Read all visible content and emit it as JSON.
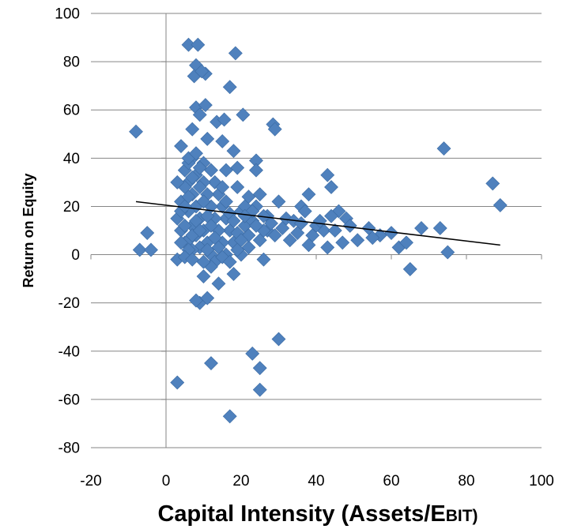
{
  "chart_data": {
    "type": "scatter",
    "title": "",
    "xlabel_main": "Capital Intensity (Assets/E",
    "xlabel_small": "BIT)",
    "ylabel": "Return on Equity",
    "xlim": [
      -20,
      100
    ],
    "ylim": [
      -80,
      100
    ],
    "x_ticks": [
      -20,
      0,
      20,
      40,
      60,
      80,
      100
    ],
    "y_ticks": [
      -80,
      -60,
      -40,
      -20,
      0,
      20,
      40,
      60,
      80,
      100
    ],
    "grid": "horizontal",
    "legend": "none",
    "marker_color": "#4f81bd",
    "trendline": {
      "x": [
        -8,
        89
      ],
      "y": [
        22,
        4
      ]
    },
    "points": [
      [
        6,
        87
      ],
      [
        8.5,
        87
      ],
      [
        18.5,
        83.5
      ],
      [
        8,
        78.5
      ],
      [
        7.5,
        74
      ],
      [
        10.5,
        75
      ],
      [
        9.5,
        76
      ],
      [
        17,
        69.5
      ],
      [
        8,
        61
      ],
      [
        10.5,
        62
      ],
      [
        20.5,
        58
      ],
      [
        9,
        58
      ],
      [
        7,
        52
      ],
      [
        13.5,
        55
      ],
      [
        15.5,
        56
      ],
      [
        28.5,
        54
      ],
      [
        29,
        52
      ],
      [
        -8,
        51
      ],
      [
        4,
        45
      ],
      [
        11,
        48
      ],
      [
        15,
        47
      ],
      [
        18,
        43
      ],
      [
        7,
        40
      ],
      [
        24,
        39
      ],
      [
        74,
        44
      ],
      [
        43,
        33
      ],
      [
        87,
        29.5
      ],
      [
        89,
        20.5
      ],
      [
        24,
        35
      ],
      [
        19,
        36
      ],
      [
        16,
        35
      ],
      [
        25,
        25
      ],
      [
        30,
        22
      ],
      [
        38,
        25
      ],
      [
        44,
        28
      ],
      [
        36,
        20
      ],
      [
        37,
        18
      ],
      [
        46,
        18
      ],
      [
        48,
        15
      ],
      [
        54,
        11
      ],
      [
        44,
        16
      ],
      [
        42,
        10
      ],
      [
        47,
        5
      ],
      [
        51,
        6
      ],
      [
        57,
        8
      ],
      [
        60,
        9
      ],
      [
        62,
        3
      ],
      [
        64,
        5
      ],
      [
        68,
        11
      ],
      [
        73,
        11
      ],
      [
        75,
        1
      ],
      [
        65,
        -6
      ],
      [
        -5,
        9
      ],
      [
        -7,
        2
      ],
      [
        -4,
        2
      ],
      [
        3,
        -2
      ],
      [
        10,
        -9
      ],
      [
        14,
        -12
      ],
      [
        18,
        -8
      ],
      [
        9,
        -20
      ],
      [
        11,
        -18
      ],
      [
        8,
        -19
      ],
      [
        30,
        -35
      ],
      [
        23,
        -41
      ],
      [
        25,
        -47
      ],
      [
        12,
        -45
      ],
      [
        3,
        -53
      ],
      [
        25,
        -56
      ],
      [
        17,
        -67
      ],
      [
        40,
        12
      ],
      [
        39,
        8
      ],
      [
        35,
        9
      ],
      [
        33,
        6
      ],
      [
        38,
        4
      ],
      [
        43,
        3
      ],
      [
        27,
        10
      ],
      [
        22,
        3
      ],
      [
        26,
        -2
      ],
      [
        20,
        0
      ],
      [
        3,
        15
      ],
      [
        4,
        10
      ],
      [
        5,
        5
      ],
      [
        6,
        30
      ],
      [
        7,
        25
      ],
      [
        8,
        20
      ],
      [
        9,
        15
      ],
      [
        10,
        10
      ],
      [
        11,
        5
      ],
      [
        12,
        0
      ],
      [
        5,
        35
      ],
      [
        6,
        38
      ],
      [
        13,
        30
      ],
      [
        14,
        25
      ],
      [
        15,
        20
      ],
      [
        16,
        15
      ],
      [
        17,
        10
      ],
      [
        18,
        5
      ],
      [
        19,
        2
      ],
      [
        20,
        18
      ],
      [
        21,
        12
      ],
      [
        22,
        8
      ],
      [
        23,
        14
      ],
      [
        24,
        20
      ],
      [
        25,
        6
      ],
      [
        26,
        10
      ],
      [
        4,
        22
      ],
      [
        5,
        28
      ],
      [
        6,
        18
      ],
      [
        7,
        12
      ],
      [
        8,
        8
      ],
      [
        9,
        3
      ],
      [
        10,
        30
      ],
      [
        11,
        25
      ],
      [
        12,
        20
      ],
      [
        13,
        15
      ],
      [
        14,
        10
      ],
      [
        15,
        5
      ],
      [
        16,
        0
      ],
      [
        3,
        30
      ],
      [
        4,
        18
      ],
      [
        5,
        12
      ],
      [
        6,
        6
      ],
      [
        7,
        2
      ],
      [
        8,
        33
      ],
      [
        9,
        28
      ],
      [
        10,
        22
      ],
      [
        11,
        16
      ],
      [
        12,
        12
      ],
      [
        13,
        7
      ],
      [
        14,
        3
      ],
      [
        15,
        28
      ],
      [
        16,
        22
      ],
      [
        17,
        17
      ],
      [
        18,
        14
      ],
      [
        19,
        9
      ],
      [
        20,
        6
      ],
      [
        21,
        20
      ],
      [
        22,
        24
      ],
      [
        23,
        18
      ],
      [
        27,
        16
      ],
      [
        28,
        13
      ],
      [
        31,
        11
      ],
      [
        32,
        15
      ],
      [
        34,
        14
      ],
      [
        6,
        40
      ],
      [
        8,
        42
      ],
      [
        10,
        38
      ],
      [
        12,
        35
      ],
      [
        7,
        32
      ],
      [
        9,
        36
      ],
      [
        5,
        20
      ],
      [
        6,
        24
      ],
      [
        7,
        8
      ],
      [
        8,
        14
      ],
      [
        9,
        10
      ],
      [
        11,
        2
      ],
      [
        13,
        -3
      ],
      [
        15,
        -1
      ],
      [
        12,
        -5
      ],
      [
        10,
        -3
      ],
      [
        6,
        2
      ],
      [
        4,
        5
      ],
      [
        5,
        -1
      ],
      [
        7,
        -2
      ],
      [
        17,
        -3
      ],
      [
        19,
        28
      ],
      [
        21,
        16
      ],
      [
        24,
        12
      ],
      [
        26,
        16
      ],
      [
        29,
        8
      ],
      [
        36,
        13
      ],
      [
        41,
        14
      ],
      [
        45,
        10
      ],
      [
        49,
        12
      ],
      [
        55,
        7
      ]
    ]
  }
}
